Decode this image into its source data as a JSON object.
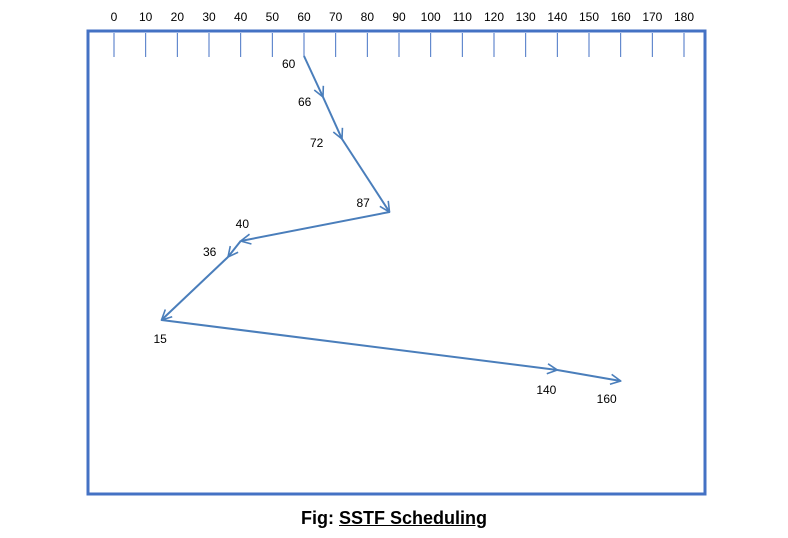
{
  "caption": {
    "prefix": "Fig:",
    "title": "SSTF Scheduling"
  },
  "colors": {
    "frame": "#4472C4",
    "path": "#4A7EBB",
    "text": "#000000"
  },
  "axis": {
    "ticks": [
      0,
      10,
      20,
      30,
      40,
      50,
      60,
      70,
      80,
      90,
      100,
      110,
      120,
      130,
      140,
      150,
      160,
      170,
      180
    ]
  },
  "sequence": [
    60,
    66,
    72,
    87,
    40,
    36,
    15,
    140,
    160
  ]
}
